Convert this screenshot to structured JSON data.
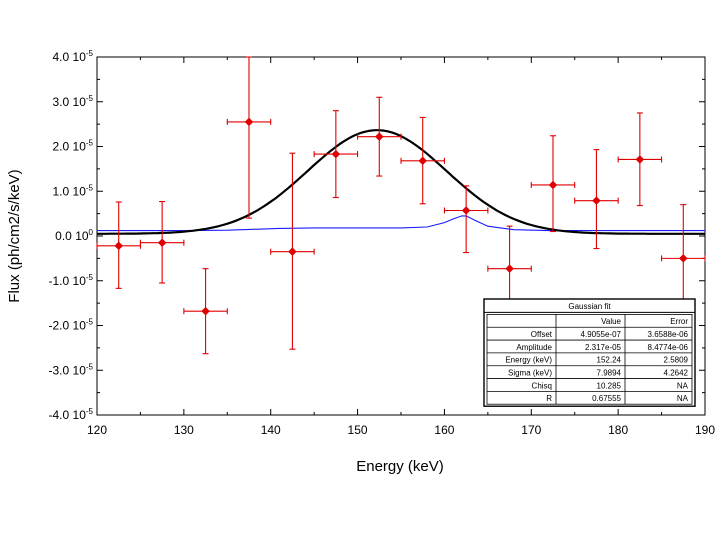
{
  "chart_data": {
    "type": "scatter",
    "xlabel": "Energy (keV)",
    "ylabel": "Flux (ph/cm2/s/keV)",
    "xlim": [
      120,
      190
    ],
    "ylim": [
      -4e-05,
      4e-05
    ],
    "x_ticks": [
      120,
      130,
      140,
      150,
      160,
      170,
      180,
      190
    ],
    "y_ticks": [
      {
        "value": 4e-05,
        "mantissa": "4.0 10",
        "exp": "-5"
      },
      {
        "value": 3e-05,
        "mantissa": "3.0 10",
        "exp": "-5"
      },
      {
        "value": 2e-05,
        "mantissa": "2.0 10",
        "exp": "-5"
      },
      {
        "value": 1e-05,
        "mantissa": "1.0 10",
        "exp": "-5"
      },
      {
        "value": 0,
        "mantissa": "0.0 10",
        "exp": "0"
      },
      {
        "value": -1e-05,
        "mantissa": "-1.0 10",
        "exp": "-5"
      },
      {
        "value": -2e-05,
        "mantissa": "-2.0 10",
        "exp": "-5"
      },
      {
        "value": -3e-05,
        "mantissa": "-3.0 10",
        "exp": "-5"
      },
      {
        "value": -4e-05,
        "mantissa": "-4.0 10",
        "exp": "-5"
      }
    ],
    "data_points": {
      "name": "measured flux",
      "color": "#e00000",
      "x": [
        122.5,
        127.5,
        132.5,
        137.5,
        142.5,
        147.5,
        152.5,
        157.5,
        162.5,
        167.5,
        172.5,
        177.5,
        182.5,
        187.5
      ],
      "xerr": 2.5,
      "y": [
        -2.2e-06,
        -1.5e-06,
        -1.68e-05,
        2.55e-05,
        -3.5e-06,
        1.83e-05,
        2.22e-05,
        1.68e-05,
        5.7e-06,
        -7.3e-06,
        1.14e-05,
        7.9e-06,
        1.71e-05,
        -5e-06
      ],
      "yerr_plus": [
        9.8e-06,
        9.2e-06,
        9.5e-06,
        1.55e-05,
        2.2e-05,
        9.7e-06,
        8.8e-06,
        9.7e-06,
        5.5e-06,
        9.5e-06,
        1.1e-05,
        1.14e-05,
        1.04e-05,
        1.2e-05
      ],
      "yerr_minus": [
        9.5e-06,
        9e-06,
        9.5e-06,
        2.15e-05,
        2.18e-05,
        9.7e-06,
        8.8e-06,
        9.6e-06,
        9.4e-06,
        9.5e-06,
        1.04e-05,
        1.07e-05,
        1.03e-05,
        1.2e-05
      ]
    },
    "gaussian_fit": {
      "color": "#000000",
      "offset": 4.9055e-07,
      "amplitude": 2.317e-05,
      "center": 152.24,
      "sigma": 7.9894
    },
    "background_curve": {
      "color": "#1a1aff",
      "x": [
        120,
        125,
        130,
        135,
        138,
        141,
        145,
        150,
        155,
        158,
        160,
        161,
        162,
        162.5,
        163.5,
        165,
        168,
        172,
        180,
        190
      ],
      "y": [
        1.2e-06,
        1.2e-06,
        1.2e-06,
        1.3e-06,
        1.5e-06,
        1.7e-06,
        1.8e-06,
        1.8e-06,
        1.8e-06,
        2e-06,
        3e-06,
        3.8e-06,
        4.5e-06,
        4.5e-06,
        3.5e-06,
        2.2e-06,
        1.4e-06,
        1.2e-06,
        1.2e-06,
        1.2e-06
      ]
    },
    "fit_table": {
      "title": "Gaussian fit",
      "columns": [
        "",
        "Value",
        "Error"
      ],
      "rows": [
        [
          "Offset",
          "4.9055e-07",
          "3.6588e-06"
        ],
        [
          "Amplitude",
          "2.317e-05",
          "8.4774e-06"
        ],
        [
          "Energy (keV)",
          "152.24",
          "2.5809"
        ],
        [
          "Sigma (keV)",
          "7.9894",
          "4.2642"
        ],
        [
          "Chisq",
          "10.285",
          "NA"
        ],
        [
          "R",
          "0.67555",
          "NA"
        ]
      ]
    }
  }
}
